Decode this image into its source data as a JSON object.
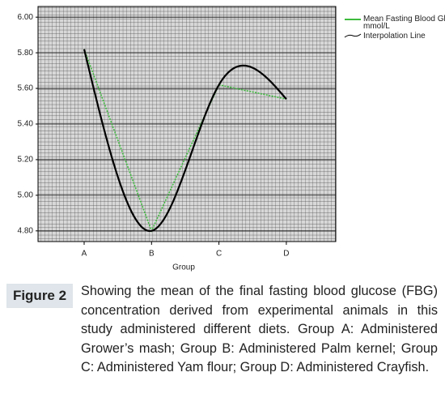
{
  "chart_data": {
    "type": "line",
    "x_label": "Group",
    "categories": [
      "A",
      "B",
      "C",
      "D"
    ],
    "series": [
      {
        "name": "Mean Fasting Blood Glucose mmol/L",
        "color": "#3dbb3d",
        "values": [
          5.82,
          4.8,
          5.62,
          5.54
        ],
        "style": "dotted"
      },
      {
        "name": "Interpolation Line",
        "color": "#000000",
        "values": [
          5.82,
          4.8,
          5.62,
          5.54
        ],
        "smooth": true
      }
    ],
    "ylim": [
      4.74,
      6.06
    ],
    "yticks": [
      {
        "value": 4.8,
        "label": "4.80"
      },
      {
        "value": 5.0,
        "label": "5.00"
      },
      {
        "value": 5.2,
        "label": "5.20"
      },
      {
        "value": 5.4,
        "label": "5.40"
      },
      {
        "value": 5.6,
        "label": "5.60"
      },
      {
        "value": 5.8,
        "label": "5.80"
      },
      {
        "value": 6.0,
        "label": "6.00"
      }
    ],
    "grid": true,
    "legend": "top-right"
  },
  "caption": {
    "label": "Figure 2",
    "text": "Showing the mean of the final fasting blood glucose (FBG) concentration derived from experimental animals in this study administered different diets. Group A: Administered Grower’s mash; Group B: Administered Palm kernel; Group C: Administered Yam flour; Group D: Administered Crayfish."
  }
}
